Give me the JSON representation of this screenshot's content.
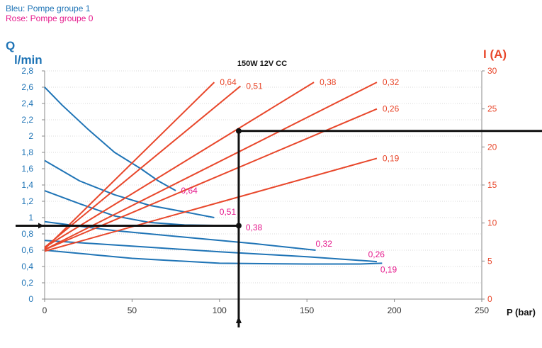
{
  "legend": {
    "blue": "Bleu: Pompe groupe 1",
    "pink": "Rose: Pompe groupe 0"
  },
  "colors": {
    "blue": "#1f74b6",
    "red": "#e8472b",
    "pink": "#e5198c",
    "black": "#111111",
    "axis": "#888888",
    "grid": "#d9d9d9"
  },
  "chart_data": {
    "type": "line",
    "title": "150W 12V CC",
    "xlabel": "P (bar)",
    "ylabel_left_symbol": "Q",
    "ylabel_left_unit": "l/min",
    "ylabel_right": "I (A)",
    "xlim": [
      0,
      250
    ],
    "ylim_left": [
      0,
      2.8
    ],
    "ylim_right": [
      0,
      30
    ],
    "x_ticks": [
      0,
      50,
      100,
      150,
      200,
      250
    ],
    "y_left_ticks": [
      "0",
      "0,2",
      "0,4",
      "0,6",
      "0,8",
      "1",
      "1,2",
      "1,4",
      "1,6",
      "1,8",
      "2",
      "2,2",
      "2,4",
      "2,6",
      "2,8"
    ],
    "y_right_ticks": [
      0,
      5,
      10,
      15,
      20,
      25,
      30
    ],
    "grid": "horizontal",
    "flow_series": [
      {
        "name": "0,64",
        "label_at": [
          78,
          1.33
        ],
        "points": [
          [
            0,
            2.6
          ],
          [
            10,
            2.38
          ],
          [
            25,
            2.08
          ],
          [
            40,
            1.8
          ],
          [
            55,
            1.6
          ],
          [
            65,
            1.45
          ],
          [
            75,
            1.33
          ]
        ]
      },
      {
        "name": "0,51",
        "label_at": [
          100,
          1.07
        ],
        "points": [
          [
            0,
            1.7
          ],
          [
            20,
            1.45
          ],
          [
            40,
            1.28
          ],
          [
            60,
            1.15
          ],
          [
            80,
            1.07
          ],
          [
            97,
            1.0
          ]
        ]
      },
      {
        "name": "0,38",
        "label_at": [
          115,
          0.88
        ],
        "points": [
          [
            0,
            1.33
          ],
          [
            20,
            1.17
          ],
          [
            40,
            1.02
          ],
          [
            60,
            0.94
          ],
          [
            80,
            0.91
          ],
          [
            110,
            0.9
          ]
        ]
      },
      {
        "name": "0,32",
        "label_at": [
          155,
          0.68
        ],
        "points": [
          [
            0,
            0.95
          ],
          [
            40,
            0.84
          ],
          [
            80,
            0.76
          ],
          [
            120,
            0.68
          ],
          [
            155,
            0.6
          ]
        ]
      },
      {
        "name": "0,26",
        "label_at": [
          185,
          0.55
        ],
        "points": [
          [
            0,
            0.72
          ],
          [
            50,
            0.65
          ],
          [
            100,
            0.58
          ],
          [
            150,
            0.52
          ],
          [
            190,
            0.46
          ]
        ]
      },
      {
        "name": "0,19",
        "label_at": [
          192,
          0.36
        ],
        "points": [
          [
            0,
            0.6
          ],
          [
            50,
            0.5
          ],
          [
            100,
            0.44
          ],
          [
            150,
            0.43
          ],
          [
            180,
            0.43
          ],
          [
            193,
            0.44
          ]
        ]
      }
    ],
    "current_series": [
      {
        "name": "0,64",
        "points": [
          [
            0,
            6.6
          ],
          [
            97,
            28.5
          ]
        ]
      },
      {
        "name": "0,51",
        "points": [
          [
            0,
            6.8
          ],
          [
            112,
            28.0
          ]
        ]
      },
      {
        "name": "0,38",
        "points": [
          [
            0,
            6.8
          ],
          [
            154,
            28.5
          ]
        ]
      },
      {
        "name": "0,32",
        "points": [
          [
            0,
            6.5
          ],
          [
            190,
            28.5
          ]
        ]
      },
      {
        "name": "0,26",
        "points": [
          [
            0,
            6.5
          ],
          [
            190,
            25.0
          ]
        ]
      },
      {
        "name": "0,19",
        "points": [
          [
            0,
            6.3
          ],
          [
            190,
            18.5
          ]
        ]
      }
    ],
    "current_labels": [
      {
        "text": "0,64",
        "x": 97,
        "y": 28.5
      },
      {
        "text": "0,51",
        "x": 112,
        "y": 28.0
      },
      {
        "text": "0,38",
        "x": 154,
        "y": 28.5
      },
      {
        "text": "0,32",
        "x": 190,
        "y": 28.5
      },
      {
        "text": "0,26",
        "x": 190,
        "y": 25.0
      },
      {
        "text": "0,19",
        "x": 190,
        "y": 18.5
      }
    ],
    "reading": {
      "pressure": 111,
      "flow": 0.9,
      "current": 22.1
    }
  }
}
